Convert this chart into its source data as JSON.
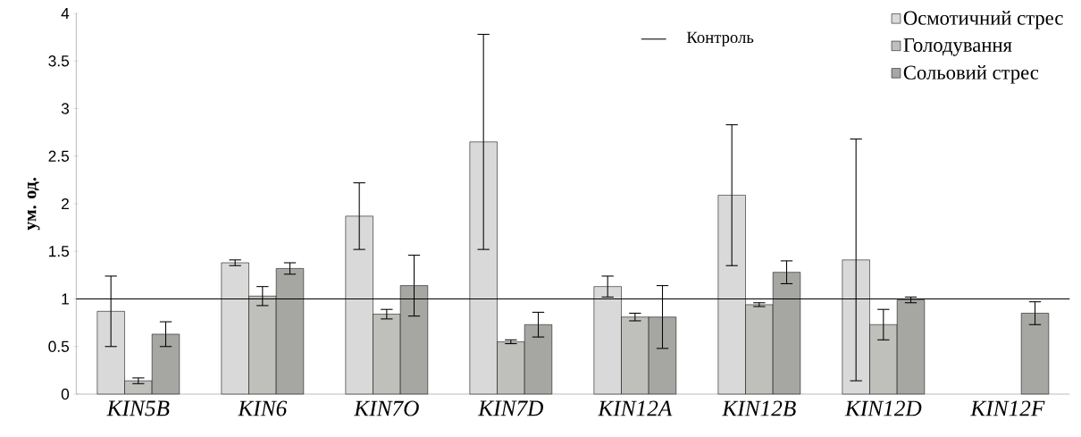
{
  "chart_data": {
    "type": "bar",
    "ylabel": "ум. од.",
    "categories": [
      "KIN5B",
      "KIN6",
      "KIN7O",
      "KIN7D",
      "KIN12A",
      "KIN12B",
      "KIN12D",
      "KIN12F"
    ],
    "series": [
      {
        "name": "Осмотичний стрес",
        "color": "#d9d9d9",
        "values": [
          0.87,
          1.38,
          1.87,
          2.65,
          1.13,
          2.09,
          1.41,
          null
        ],
        "errors": [
          0.37,
          0.03,
          0.35,
          1.13,
          0.11,
          0.74,
          1.27,
          null
        ]
      },
      {
        "name": "Голодування",
        "color": "#bfc0bb",
        "values": [
          0.14,
          1.03,
          0.84,
          0.55,
          0.81,
          0.94,
          0.73,
          null
        ],
        "errors": [
          0.03,
          0.1,
          0.05,
          0.02,
          0.04,
          0.02,
          0.16,
          null
        ]
      },
      {
        "name": "Сольовий стрес",
        "color": "#a6a7a2",
        "values": [
          0.63,
          1.32,
          1.14,
          0.73,
          0.81,
          1.28,
          0.99,
          0.85
        ],
        "errors": [
          0.13,
          0.06,
          0.32,
          0.13,
          0.33,
          0.12,
          0.03,
          0.12
        ]
      }
    ],
    "ylim": [
      0,
      4
    ],
    "yticks": [
      0,
      0.5,
      1,
      1.5,
      2,
      2.5,
      3,
      3.5,
      4
    ],
    "ref_lines": [
      {
        "axis": "y",
        "value": 1,
        "label": "Контроль",
        "color": "#000000"
      }
    ],
    "legend": "top right"
  }
}
